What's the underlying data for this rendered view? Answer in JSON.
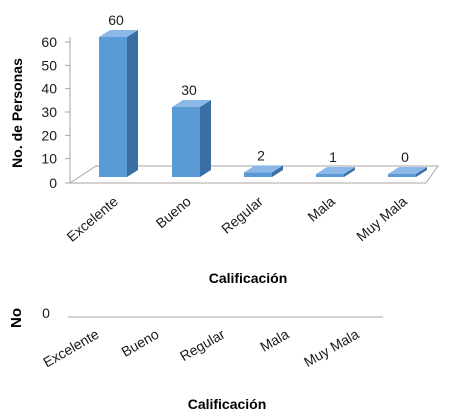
{
  "chart_data": [
    {
      "type": "bar",
      "style": "3d-column",
      "categories": [
        "Excelente",
        "Bueno",
        "Regular",
        "Mala",
        "Muy Mala"
      ],
      "values": [
        60,
        30,
        2,
        1,
        0
      ],
      "data_labels": [
        "60",
        "30",
        "2",
        "1",
        "0"
      ],
      "ylabel": "No. de Personas",
      "xlabel": "Calificación",
      "ylim": [
        0,
        60
      ],
      "yticks": [
        "0",
        "10",
        "20",
        "30",
        "40",
        "50",
        "60"
      ],
      "grid": false,
      "legend": "none",
      "bar_color": "#5b9bd5"
    },
    {
      "type": "bar",
      "partial": true,
      "categories": [
        "Excelente",
        "Bueno",
        "Regular",
        "Mala",
        "Muy Mala"
      ],
      "ylabel_fragment": "No",
      "xlabel": "Calificación",
      "visible_ytick": "0"
    }
  ]
}
